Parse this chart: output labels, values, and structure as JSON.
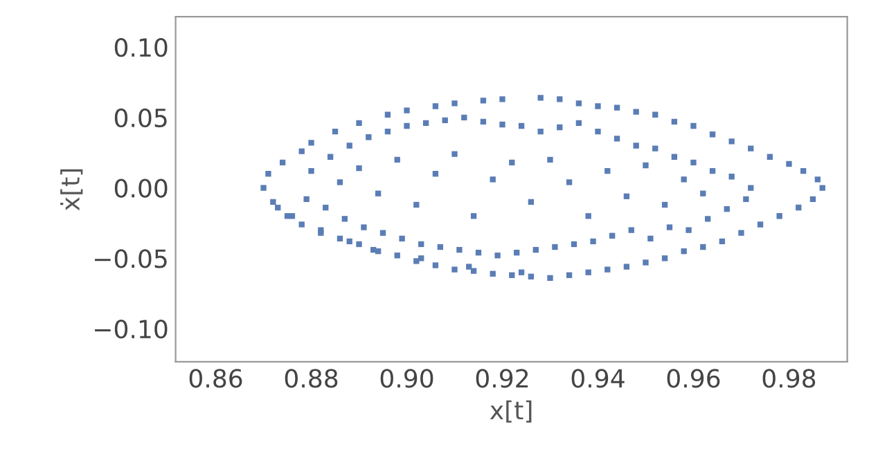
{
  "chart_data": {
    "type": "scatter",
    "xlabel": "x[t]",
    "ylabel": "ẋ[t]",
    "marker": "square",
    "grid": false,
    "xlim": [
      0.8516,
      0.9922
    ],
    "ylim": [
      -0.1235,
      0.1216
    ],
    "xticks": [
      {
        "value": 0.86,
        "label": "0.86"
      },
      {
        "value": 0.88,
        "label": "0.88"
      },
      {
        "value": 0.9,
        "label": "0.90"
      },
      {
        "value": 0.92,
        "label": "0.92"
      },
      {
        "value": 0.94,
        "label": "0.94"
      },
      {
        "value": 0.96,
        "label": "0.96"
      },
      {
        "value": 0.98,
        "label": "0.98"
      }
    ],
    "yticks": [
      {
        "value": -0.1,
        "label": "−0.10"
      },
      {
        "value": -0.05,
        "label": "−0.05"
      },
      {
        "value": 0,
        "label": "0.00"
      },
      {
        "value": 0.05,
        "label": "0.05"
      },
      {
        "value": 0.1,
        "label": "0.10"
      }
    ],
    "series": [
      {
        "color": "#5a7db5",
        "x": [
          0.87,
          0.871,
          0.872,
          0.874,
          0.876,
          0.878,
          0.88,
          0.882,
          0.885,
          0.888,
          0.89,
          0.893,
          0.896,
          0.9,
          0.903,
          0.906,
          0.91,
          0.913,
          0.916,
          0.92,
          0.924,
          0.928,
          0.932,
          0.936,
          0.94,
          0.944,
          0.948,
          0.952,
          0.956,
          0.96,
          0.964,
          0.968,
          0.972,
          0.976,
          0.98,
          0.983,
          0.986,
          0.987,
          0.985,
          0.982,
          0.978,
          0.974,
          0.97,
          0.966,
          0.962,
          0.958,
          0.954,
          0.95,
          0.946,
          0.942,
          0.938,
          0.934,
          0.93,
          0.926,
          0.922,
          0.918,
          0.914,
          0.91,
          0.906,
          0.902,
          0.898,
          0.894,
          0.89,
          0.886,
          0.882,
          0.878,
          0.875,
          0.873,
          0.88,
          0.884,
          0.888,
          0.892,
          0.896,
          0.9,
          0.904,
          0.908,
          0.912,
          0.916,
          0.92,
          0.924,
          0.928,
          0.932,
          0.936,
          0.94,
          0.944,
          0.948,
          0.952,
          0.956,
          0.96,
          0.964,
          0.968,
          0.972,
          0.879,
          0.883,
          0.887,
          0.891,
          0.895,
          0.899,
          0.903,
          0.907,
          0.911,
          0.915,
          0.919,
          0.923,
          0.927,
          0.931,
          0.935,
          0.939,
          0.943,
          0.947,
          0.951,
          0.955,
          0.959,
          0.963,
          0.967,
          0.971,
          0.886,
          0.89,
          0.894,
          0.898,
          0.902,
          0.906,
          0.91,
          0.914,
          0.918,
          0.922,
          0.926,
          0.93,
          0.934,
          0.938,
          0.942,
          0.946,
          0.95,
          0.954,
          0.958,
          0.962
        ],
        "values": [
          0.0,
          0.01,
          -0.01,
          0.018,
          -0.02,
          0.026,
          0.032,
          -0.03,
          0.04,
          -0.038,
          0.046,
          -0.044,
          0.052,
          0.055,
          -0.05,
          0.058,
          0.06,
          -0.056,
          0.062,
          0.063,
          -0.06,
          0.064,
          0.063,
          0.06,
          0.058,
          0.057,
          0.054,
          0.052,
          0.047,
          0.044,
          0.038,
          0.033,
          0.028,
          0.022,
          0.017,
          0.012,
          0.006,
          0.0,
          -0.008,
          -0.014,
          -0.02,
          -0.026,
          -0.032,
          -0.038,
          -0.042,
          -0.045,
          -0.05,
          -0.053,
          -0.056,
          -0.058,
          -0.06,
          -0.062,
          -0.064,
          -0.063,
          -0.062,
          -0.061,
          -0.059,
          -0.058,
          -0.055,
          -0.052,
          -0.048,
          -0.045,
          -0.04,
          -0.036,
          -0.032,
          -0.026,
          -0.02,
          -0.014,
          0.012,
          0.022,
          0.03,
          0.036,
          0.04,
          0.044,
          0.046,
          0.048,
          0.05,
          0.047,
          0.045,
          0.044,
          0.04,
          0.043,
          0.046,
          0.04,
          0.035,
          0.03,
          0.028,
          0.022,
          0.018,
          0.012,
          0.008,
          0.0,
          -0.008,
          -0.014,
          -0.022,
          -0.028,
          -0.032,
          -0.036,
          -0.04,
          -0.042,
          -0.044,
          -0.046,
          -0.048,
          -0.046,
          -0.044,
          -0.042,
          -0.04,
          -0.038,
          -0.034,
          -0.03,
          -0.036,
          -0.028,
          -0.03,
          -0.022,
          -0.015,
          -0.008,
          0.004,
          0.014,
          -0.004,
          0.02,
          -0.012,
          0.01,
          0.024,
          -0.02,
          0.006,
          0.018,
          -0.01,
          0.02,
          0.004,
          -0.02,
          0.012,
          -0.006,
          0.016,
          -0.012,
          0.006,
          -0.004
        ]
      }
    ]
  }
}
